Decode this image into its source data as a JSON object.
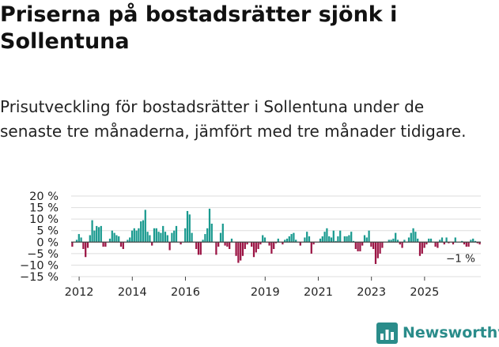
{
  "title": "Priserna på bostadsrätter sjönk i Sollentuna",
  "subtitle": "Prisutveckling för bostadsrätter i Sollentuna under de senaste tre månaderna, jämfört med tre månader tidigare.",
  "brand": {
    "name": "Newsworthy"
  },
  "colors": {
    "positive": "#1a9a8f",
    "negative": "#9b1444",
    "axis": "#444444",
    "grid": "#dddddd",
    "text": "#222222",
    "brand": "#2a8c8a"
  },
  "chart_data": {
    "type": "bar",
    "title": "Prisutveckling för bostadsrätter i Sollentuna",
    "xlabel": "",
    "ylabel": "",
    "ylim": [
      -15,
      20
    ],
    "yticks": [
      -15,
      -10,
      -5,
      0,
      5,
      10,
      15,
      20
    ],
    "ytick_labels": [
      "−15 %",
      "−10 %",
      "−5 %",
      "0 %",
      "5 %",
      "10 %",
      "15 %",
      "20 %"
    ],
    "xticks": [
      2012,
      2014,
      2016,
      2019,
      2021,
      2023,
      2025
    ],
    "start_year": 2011.7,
    "period": "month",
    "grid": true,
    "annotation": "−1 %",
    "values": [
      -2,
      0,
      1,
      3.5,
      2,
      -3,
      -6.5,
      -2.5,
      3,
      9.5,
      5,
      7,
      6.5,
      7,
      -2,
      -2,
      0,
      1.5,
      5,
      4,
      3,
      2.5,
      -2,
      -3,
      0,
      1,
      2,
      5,
      6,
      5,
      6,
      9,
      9.5,
      14,
      4.5,
      3,
      -1.5,
      6,
      6,
      4.5,
      4,
      7,
      4.5,
      3,
      -3.5,
      4,
      5,
      7,
      0,
      -1,
      0,
      6,
      13.5,
      12,
      4,
      0,
      -3,
      -5.5,
      -5.5,
      1,
      3.5,
      6,
      14.5,
      8,
      0,
      -5.5,
      -2,
      4,
      8,
      -1.5,
      -2,
      -3,
      1.5,
      0,
      -6,
      -9,
      -8,
      -6,
      -3,
      -1,
      0,
      -2,
      -6.5,
      -4.5,
      -3,
      -1,
      3,
      2,
      0,
      -1.5,
      -5,
      -3,
      -0.5,
      1.5,
      0,
      -1,
      1,
      1.5,
      2.5,
      3.5,
      4,
      1,
      0,
      -1.5,
      0,
      2,
      4.5,
      2.5,
      -5,
      -1,
      0,
      0,
      1.5,
      2.5,
      4.5,
      6,
      2.5,
      2,
      5,
      0.5,
      2.5,
      5,
      0,
      2.5,
      2.5,
      3,
      4.5,
      0.5,
      -3,
      -4,
      -4,
      -1.5,
      3,
      2,
      5,
      -2,
      -3,
      -9.5,
      -7,
      -5,
      -2.5,
      0,
      0,
      1,
      1,
      1.5,
      4,
      1,
      -1,
      -2.5,
      1,
      0,
      2,
      4,
      6,
      4.5,
      1.5,
      -6,
      -5,
      -2.5,
      -1,
      1.5,
      1.5,
      0,
      -2,
      -2.5,
      1,
      2,
      -1,
      2,
      -0.5,
      0,
      -1,
      2,
      0,
      0,
      0.5,
      -1,
      -2,
      -2,
      1,
      1.5,
      0.5,
      -0.5,
      -1
    ]
  }
}
